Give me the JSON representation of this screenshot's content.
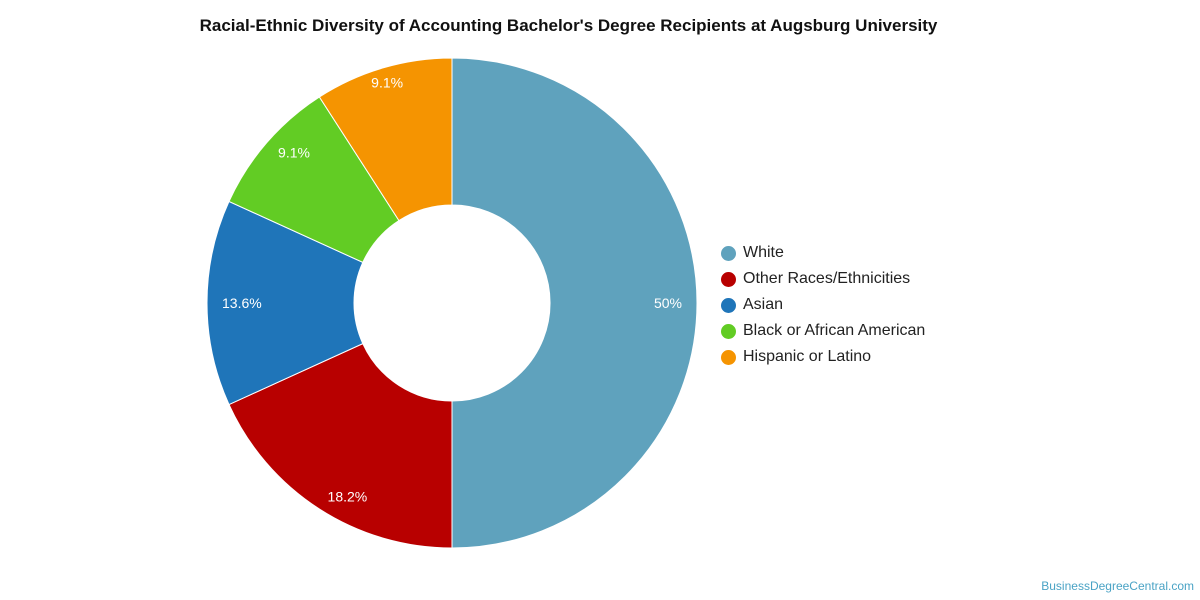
{
  "chart_data": {
    "type": "pie",
    "variant": "donut",
    "title": "Racial-Ethnic Diversity of Accounting Bachelor's Degree Recipients at Augsburg University",
    "slices": [
      {
        "label": "White",
        "value": 50,
        "display": "50%",
        "color": "#5fa2bd"
      },
      {
        "label": "Other Races/Ethnicities",
        "value": 18.2,
        "display": "18.2%",
        "color": "#b80000"
      },
      {
        "label": "Asian",
        "value": 13.6,
        "display": "13.6%",
        "color": "#1f75b9"
      },
      {
        "label": "Black or African American",
        "value": 9.1,
        "display": "9.1%",
        "color": "#62cc24"
      },
      {
        "label": "Hispanic or Latino",
        "value": 9.1,
        "display": "9.1%",
        "color": "#f59401"
      }
    ],
    "legend_position": "right"
  },
  "credit": "BusinessDegreeCentral.com"
}
